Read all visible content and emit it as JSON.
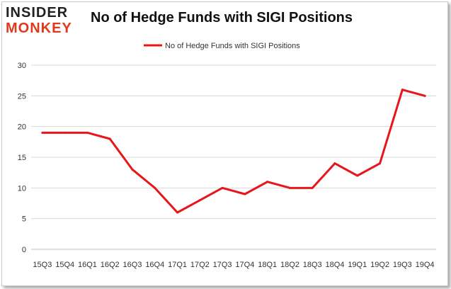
{
  "logo": {
    "line1": "INSIDER",
    "line2": "MONKEY"
  },
  "chart_data": {
    "type": "line",
    "title": "No of Hedge Funds with SIGI Positions",
    "xlabel": "",
    "ylabel": "",
    "categories": [
      "15Q3",
      "15Q4",
      "16Q1",
      "16Q2",
      "16Q3",
      "16Q4",
      "17Q1",
      "17Q2",
      "17Q3",
      "17Q4",
      "18Q1",
      "18Q2",
      "18Q3",
      "18Q4",
      "19Q1",
      "19Q2",
      "19Q3",
      "19Q4"
    ],
    "series": [
      {
        "name": "No of Hedge Funds with SIGI Positions",
        "values": [
          19,
          19,
          19,
          18,
          13,
          10,
          6,
          8,
          10,
          9,
          11,
          10,
          10,
          14,
          12,
          14,
          26,
          25
        ]
      }
    ],
    "ylim": [
      0,
      30
    ],
    "yticks": [
      0,
      5,
      10,
      15,
      20,
      25,
      30
    ],
    "grid": true,
    "legend": "top-center",
    "colors": {
      "line": "#e8161b",
      "grid": "#d9d9d9",
      "text": "#333333"
    }
  }
}
